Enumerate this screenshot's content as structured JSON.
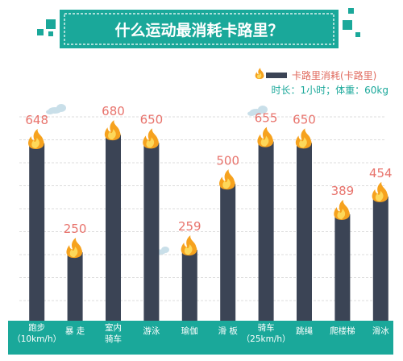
{
  "chart_data": {
    "type": "bar",
    "title": "什么运动最消耗卡路里？",
    "legend": "卡路里消耗(卡路里)",
    "subtitle": "时长：1小时；体重：60kg",
    "categories": [
      [
        "跑步",
        "（10km/h）"
      ],
      [
        "暴 走"
      ],
      [
        "室内",
        "骑车"
      ],
      [
        "游泳"
      ],
      [
        "瑜伽"
      ],
      [
        "滑 板"
      ],
      [
        "骑车",
        "（25km/h）"
      ],
      [
        "跳绳"
      ],
      [
        "爬楼梯"
      ],
      [
        "滑冰"
      ]
    ],
    "values": [
      648,
      250,
      680,
      650,
      259,
      500,
      655,
      650,
      389,
      454
    ],
    "value_labels": [
      "648",
      "250",
      "680",
      "650",
      "259",
      "500",
      "655",
      "650",
      "389",
      "454"
    ],
    "ylim": [
      0,
      760
    ],
    "grid": true,
    "legend_position": "top-right",
    "colors": {
      "bar": "#3b4455",
      "label": "#e8736c",
      "teal": "#1aa89a",
      "legend_text": "#e06a5e",
      "subtitle_text": "#1aa89a",
      "flame_outer": "#f6a21e",
      "flame_inner": "#fdd85a",
      "grid": "#dcdcdc"
    }
  }
}
